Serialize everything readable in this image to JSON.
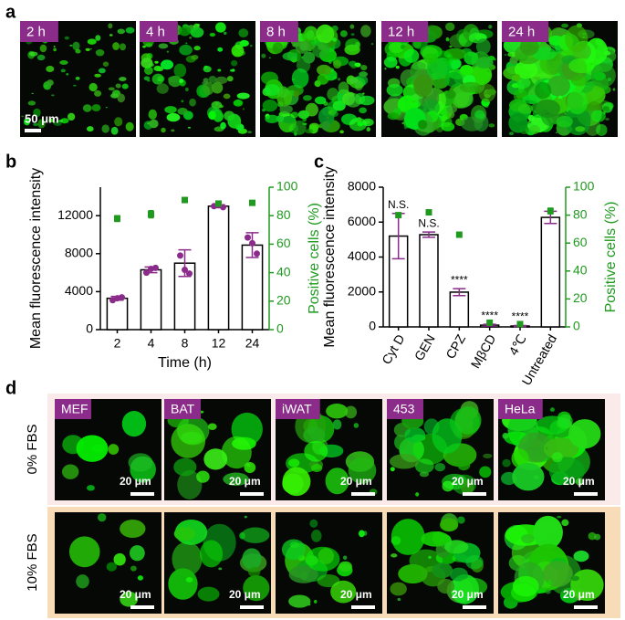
{
  "panel_a": {
    "letter": "a",
    "labels": [
      "2 h",
      "4 h",
      "8 h",
      "12 h",
      "24 h"
    ],
    "scale_bar": "50 μm"
  },
  "chart_data": [
    {
      "type": "bar",
      "panel_label": "b",
      "xlabel": "Time (h)",
      "ylabel": "Mean fluorescence intensity",
      "y2label": "Positive cells (%)",
      "categories": [
        "2",
        "4",
        "8",
        "12",
        "24"
      ],
      "ylim": [
        0,
        15000
      ],
      "yticks": [
        0,
        4000,
        8000,
        12000
      ],
      "y2lim": [
        0,
        100
      ],
      "y2ticks": [
        0,
        20,
        40,
        60,
        80,
        100
      ],
      "series": [
        {
          "color": "#8b2c8b",
          "values": [
            3300,
            6300,
            7000,
            13000,
            8900
          ],
          "errors": [
            200,
            300,
            1400,
            150,
            1300
          ],
          "points": [
            [
              3100,
              3300,
              3400
            ],
            [
              6000,
              6400,
              6500
            ],
            [
              7800,
              6300,
              5900
            ],
            [
              13000,
              13100,
              12900
            ],
            [
              9700,
              9100,
              8000
            ]
          ]
        },
        {
          "color": "#1f9a1f",
          "axis": "y2",
          "values": [
            78,
            81,
            91,
            88.5,
            89
          ],
          "errors": [
            2,
            2.5,
            1.5,
            1,
            1
          ]
        }
      ]
    },
    {
      "type": "bar",
      "panel_label": "c",
      "ylabel": "Mean fluorescence intensity",
      "y2label": "Positive cells (%)",
      "categories": [
        "Cyt D",
        "GEN",
        "CPZ",
        "MβCD",
        "4℃",
        "Untreated"
      ],
      "xtick_rotation": -60,
      "ylim": [
        0,
        8000
      ],
      "yticks": [
        0,
        2000,
        4000,
        6000,
        8000
      ],
      "y2lim": [
        0,
        100
      ],
      "y2ticks": [
        0,
        20,
        40,
        60,
        80,
        100
      ],
      "series": [
        {
          "color": "#8b2c8b",
          "values": [
            5200,
            5280,
            1990,
            100,
            50,
            6270
          ],
          "errors": [
            1300,
            150,
            200,
            50,
            30,
            350
          ]
        },
        {
          "color": "#1f9a1f",
          "axis": "y2",
          "values": [
            80,
            82,
            66,
            3,
            2,
            83
          ],
          "errors": [
            1,
            1,
            1.5,
            0.5,
            0.5,
            2
          ]
        }
      ],
      "annotations": [
        {
          "text": "N.S.",
          "category": "Cyt D"
        },
        {
          "text": "N.S.",
          "category": "GEN"
        },
        {
          "text": "****",
          "category": "CPZ"
        },
        {
          "text": "****",
          "category": "MβCD"
        },
        {
          "text": "****",
          "category": "4℃"
        }
      ]
    }
  ],
  "panel_d": {
    "letter": "d",
    "columns": [
      "MEF",
      "BAT",
      "iWAT",
      "453",
      "HeLa"
    ],
    "rows": [
      "0% FBS",
      "10% FBS"
    ],
    "scale_bar": "20 μm"
  }
}
